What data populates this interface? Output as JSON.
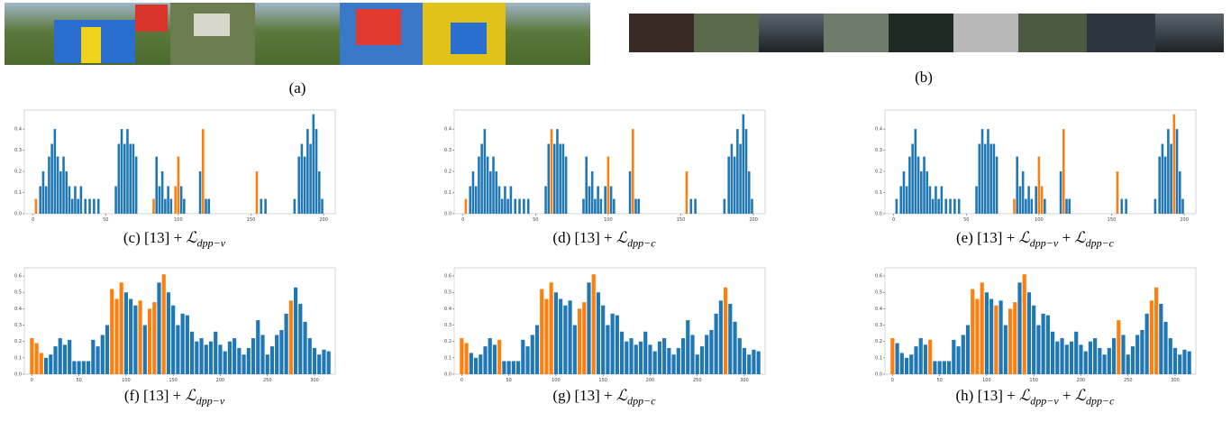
{
  "panels": {
    "image_captions": [
      "(a)",
      "(b)"
    ],
    "chart_data": [
      {
        "type": "bar",
        "caption": {
          "prefix": "(c) [13] +",
          "terms": [
            {
              "symbol": "ℒ",
              "sub": "dpp−v"
            }
          ]
        },
        "color": "#1f77b4",
        "highlight_color": "#ff7f0e",
        "x": [
          2,
          5,
          7,
          9,
          11,
          13,
          15,
          17,
          19,
          21,
          23,
          25,
          27,
          29,
          31,
          33,
          36,
          39,
          42,
          45,
          57,
          59,
          61,
          63,
          65,
          67,
          69,
          71,
          83,
          85,
          87,
          89,
          91,
          93,
          95,
          98,
          100,
          102,
          104,
          115,
          117,
          119,
          121,
          154,
          157,
          160,
          180,
          183,
          185,
          187,
          189,
          191,
          193,
          195,
          197,
          199
        ],
        "values": [
          0.07,
          0.13,
          0.2,
          0.13,
          0.27,
          0.33,
          0.4,
          0.27,
          0.2,
          0.27,
          0.2,
          0.13,
          0.07,
          0.13,
          0.07,
          0.13,
          0.07,
          0.07,
          0.07,
          0.07,
          0.13,
          0.33,
          0.4,
          0.33,
          0.4,
          0.33,
          0.33,
          0.27,
          0.07,
          0.27,
          0.13,
          0.2,
          0.07,
          0.13,
          0.07,
          0.13,
          0.27,
          0.13,
          0.07,
          0.2,
          0.4,
          0.07,
          0.07,
          0.2,
          0.07,
          0.07,
          0.07,
          0.27,
          0.33,
          0.27,
          0.4,
          0.33,
          0.47,
          0.4,
          0.2,
          0.07
        ],
        "highlight": [
          0,
          28,
          35,
          36,
          40,
          43
        ],
        "xlim": [
          -6,
          208
        ],
        "ylim": [
          0,
          0.49
        ],
        "xticks": [
          0,
          50,
          100,
          150,
          200
        ],
        "yticks": [
          {
            "value": 0,
            "label": "0.0"
          },
          {
            "value": 0.1,
            "label": "0.1"
          },
          {
            "value": 0.2,
            "label": "0.2"
          },
          {
            "value": 0.3,
            "label": "0.3"
          },
          {
            "value": 0.4,
            "label": "0.4"
          }
        ]
      },
      {
        "type": "bar",
        "caption": {
          "prefix": "(d) [13] +",
          "terms": [
            {
              "symbol": "ℒ",
              "sub": "dpp−c"
            }
          ]
        },
        "color": "#1f77b4",
        "highlight_color": "#ff7f0e",
        "x": [
          2,
          5,
          7,
          9,
          11,
          13,
          15,
          17,
          19,
          21,
          23,
          25,
          27,
          29,
          31,
          33,
          36,
          39,
          42,
          45,
          57,
          59,
          61,
          63,
          65,
          67,
          69,
          71,
          83,
          85,
          87,
          89,
          91,
          93,
          95,
          98,
          100,
          102,
          104,
          115,
          117,
          119,
          121,
          154,
          157,
          160,
          180,
          183,
          185,
          187,
          189,
          191,
          193,
          195,
          197,
          199
        ],
        "values": [
          0.07,
          0.13,
          0.2,
          0.13,
          0.27,
          0.33,
          0.4,
          0.27,
          0.2,
          0.27,
          0.2,
          0.13,
          0.07,
          0.13,
          0.07,
          0.13,
          0.07,
          0.07,
          0.07,
          0.07,
          0.13,
          0.33,
          0.4,
          0.33,
          0.4,
          0.33,
          0.33,
          0.27,
          0.07,
          0.27,
          0.13,
          0.2,
          0.07,
          0.13,
          0.07,
          0.13,
          0.27,
          0.13,
          0.07,
          0.2,
          0.4,
          0.07,
          0.07,
          0.2,
          0.07,
          0.07,
          0.07,
          0.27,
          0.33,
          0.27,
          0.4,
          0.33,
          0.47,
          0.4,
          0.2,
          0.07
        ],
        "highlight": [
          0,
          22,
          36,
          40,
          43
        ],
        "xlim": [
          -6,
          208
        ],
        "ylim": [
          0,
          0.49
        ],
        "xticks": [
          0,
          50,
          100,
          150,
          200
        ],
        "yticks": [
          {
            "value": 0,
            "label": "0.0"
          },
          {
            "value": 0.1,
            "label": "0.1"
          },
          {
            "value": 0.2,
            "label": "0.2"
          },
          {
            "value": 0.3,
            "label": "0.3"
          },
          {
            "value": 0.4,
            "label": "0.4"
          }
        ]
      },
      {
        "type": "bar",
        "caption": {
          "prefix": "(e) [13] +",
          "terms": [
            {
              "symbol": "ℒ",
              "sub": "dpp−v"
            },
            {
              "sep": "+",
              "symbol": "ℒ",
              "sub": "dpp−c"
            }
          ]
        },
        "color": "#1f77b4",
        "highlight_color": "#ff7f0e",
        "x": [
          2,
          5,
          7,
          9,
          11,
          13,
          15,
          17,
          19,
          21,
          23,
          25,
          27,
          29,
          31,
          33,
          36,
          39,
          42,
          45,
          57,
          59,
          61,
          63,
          65,
          67,
          69,
          71,
          83,
          85,
          87,
          89,
          91,
          93,
          95,
          98,
          100,
          102,
          104,
          115,
          117,
          119,
          121,
          154,
          157,
          160,
          180,
          183,
          185,
          187,
          189,
          191,
          193,
          195,
          197,
          199
        ],
        "values": [
          0.07,
          0.13,
          0.2,
          0.13,
          0.27,
          0.33,
          0.4,
          0.27,
          0.2,
          0.27,
          0.2,
          0.13,
          0.07,
          0.13,
          0.07,
          0.13,
          0.07,
          0.07,
          0.07,
          0.07,
          0.13,
          0.33,
          0.4,
          0.33,
          0.4,
          0.33,
          0.33,
          0.27,
          0.07,
          0.27,
          0.13,
          0.2,
          0.07,
          0.13,
          0.07,
          0.13,
          0.27,
          0.13,
          0.07,
          0.2,
          0.4,
          0.07,
          0.07,
          0.2,
          0.07,
          0.07,
          0.07,
          0.27,
          0.33,
          0.27,
          0.4,
          0.33,
          0.47,
          0.4,
          0.2,
          0.07
        ],
        "highlight": [
          28,
          36,
          37,
          40,
          43,
          52
        ],
        "xlim": [
          -6,
          208
        ],
        "ylim": [
          0,
          0.49
        ],
        "xticks": [
          0,
          50,
          100,
          150,
          200
        ],
        "yticks": [
          {
            "value": 0,
            "label": "0.0"
          },
          {
            "value": 0.1,
            "label": "0.1"
          },
          {
            "value": 0.2,
            "label": "0.2"
          },
          {
            "value": 0.3,
            "label": "0.3"
          },
          {
            "value": 0.4,
            "label": "0.4"
          }
        ]
      },
      {
        "type": "bar",
        "caption": {
          "prefix": "(f) [13] +",
          "terms": [
            {
              "symbol": "ℒ",
              "sub": "dpp−v"
            }
          ]
        },
        "color": "#1f77b4",
        "highlight_color": "#ff7f0e",
        "x": [
          0,
          5,
          10,
          15,
          20,
          25,
          30,
          35,
          40,
          45,
          50,
          55,
          60,
          65,
          70,
          75,
          80,
          85,
          90,
          95,
          100,
          105,
          110,
          115,
          120,
          125,
          130,
          135,
          140,
          145,
          150,
          155,
          160,
          165,
          170,
          175,
          180,
          185,
          190,
          195,
          200,
          205,
          210,
          215,
          220,
          225,
          230,
          235,
          240,
          245,
          250,
          255,
          260,
          265,
          270,
          275,
          280,
          285,
          290,
          295,
          300,
          305,
          310,
          315
        ],
        "values": [
          0.22,
          0.19,
          0.13,
          0.1,
          0.12,
          0.17,
          0.22,
          0.18,
          0.21,
          0.08,
          0.08,
          0.08,
          0.08,
          0.21,
          0.17,
          0.24,
          0.3,
          0.52,
          0.46,
          0.56,
          0.5,
          0.46,
          0.42,
          0.45,
          0.3,
          0.4,
          0.44,
          0.56,
          0.61,
          0.5,
          0.42,
          0.3,
          0.37,
          0.36,
          0.26,
          0.2,
          0.22,
          0.18,
          0.2,
          0.26,
          0.18,
          0.14,
          0.2,
          0.22,
          0.16,
          0.12,
          0.16,
          0.22,
          0.33,
          0.24,
          0.12,
          0.17,
          0.24,
          0.27,
          0.37,
          0.45,
          0.53,
          0.43,
          0.32,
          0.22,
          0.16,
          0.12,
          0.15,
          0.14
        ],
        "highlight": [
          0,
          1,
          2,
          17,
          18,
          19,
          23,
          25,
          26,
          28,
          55
        ],
        "xlim": [
          -8,
          322
        ],
        "ylim": [
          0,
          0.65
        ],
        "xticks": [
          0,
          50,
          100,
          150,
          200,
          250,
          300
        ],
        "yticks": [
          {
            "value": 0,
            "label": "0.0"
          },
          {
            "value": 0.1,
            "label": "0.1"
          },
          {
            "value": 0.2,
            "label": "0.2"
          },
          {
            "value": 0.3,
            "label": "0.3"
          },
          {
            "value": 0.4,
            "label": "0.4"
          },
          {
            "value": 0.5,
            "label": "0.5"
          },
          {
            "value": 0.6,
            "label": "0.6"
          }
        ]
      },
      {
        "type": "bar",
        "caption": {
          "prefix": "(g) [13] +",
          "terms": [
            {
              "symbol": "ℒ",
              "sub": "dpp−c"
            }
          ]
        },
        "color": "#1f77b4",
        "highlight_color": "#ff7f0e",
        "x": [
          0,
          5,
          10,
          15,
          20,
          25,
          30,
          35,
          40,
          45,
          50,
          55,
          60,
          65,
          70,
          75,
          80,
          85,
          90,
          95,
          100,
          105,
          110,
          115,
          120,
          125,
          130,
          135,
          140,
          145,
          150,
          155,
          160,
          165,
          170,
          175,
          180,
          185,
          190,
          195,
          200,
          205,
          210,
          215,
          220,
          225,
          230,
          235,
          240,
          245,
          250,
          255,
          260,
          265,
          270,
          275,
          280,
          285,
          290,
          295,
          300,
          305,
          310,
          315
        ],
        "values": [
          0.22,
          0.19,
          0.13,
          0.1,
          0.12,
          0.17,
          0.22,
          0.18,
          0.21,
          0.08,
          0.08,
          0.08,
          0.08,
          0.21,
          0.17,
          0.24,
          0.3,
          0.52,
          0.46,
          0.56,
          0.5,
          0.46,
          0.42,
          0.45,
          0.3,
          0.4,
          0.44,
          0.56,
          0.61,
          0.5,
          0.42,
          0.3,
          0.37,
          0.36,
          0.26,
          0.2,
          0.22,
          0.18,
          0.2,
          0.26,
          0.18,
          0.14,
          0.2,
          0.22,
          0.16,
          0.12,
          0.16,
          0.22,
          0.33,
          0.24,
          0.12,
          0.17,
          0.24,
          0.27,
          0.37,
          0.45,
          0.53,
          0.43,
          0.32,
          0.22,
          0.16,
          0.12,
          0.15,
          0.14
        ],
        "highlight": [
          0,
          1,
          8,
          17,
          18,
          19,
          25,
          26,
          28,
          56
        ],
        "xlim": [
          -8,
          322
        ],
        "ylim": [
          0,
          0.65
        ],
        "xticks": [
          0,
          50,
          100,
          150,
          200,
          250,
          300
        ],
        "yticks": [
          {
            "value": 0,
            "label": "0.0"
          },
          {
            "value": 0.1,
            "label": "0.1"
          },
          {
            "value": 0.2,
            "label": "0.2"
          },
          {
            "value": 0.3,
            "label": "0.3"
          },
          {
            "value": 0.4,
            "label": "0.4"
          },
          {
            "value": 0.5,
            "label": "0.5"
          },
          {
            "value": 0.6,
            "label": "0.6"
          }
        ]
      },
      {
        "type": "bar",
        "caption": {
          "prefix": "(h) [13] +",
          "terms": [
            {
              "symbol": "ℒ",
              "sub": "dpp−v"
            },
            {
              "sep": "+",
              "symbol": "ℒ",
              "sub": "dpp−c"
            }
          ]
        },
        "color": "#1f77b4",
        "highlight_color": "#ff7f0e",
        "x": [
          0,
          5,
          10,
          15,
          20,
          25,
          30,
          35,
          40,
          45,
          50,
          55,
          60,
          65,
          70,
          75,
          80,
          85,
          90,
          95,
          100,
          105,
          110,
          115,
          120,
          125,
          130,
          135,
          140,
          145,
          150,
          155,
          160,
          165,
          170,
          175,
          180,
          185,
          190,
          195,
          200,
          205,
          210,
          215,
          220,
          225,
          230,
          235,
          240,
          245,
          250,
          255,
          260,
          265,
          270,
          275,
          280,
          285,
          290,
          295,
          300,
          305,
          310,
          315
        ],
        "values": [
          0.22,
          0.19,
          0.13,
          0.1,
          0.12,
          0.17,
          0.22,
          0.18,
          0.21,
          0.08,
          0.08,
          0.08,
          0.08,
          0.21,
          0.17,
          0.24,
          0.3,
          0.52,
          0.46,
          0.56,
          0.5,
          0.46,
          0.42,
          0.45,
          0.3,
          0.4,
          0.44,
          0.56,
          0.61,
          0.5,
          0.42,
          0.3,
          0.37,
          0.36,
          0.26,
          0.2,
          0.22,
          0.18,
          0.2,
          0.26,
          0.18,
          0.14,
          0.2,
          0.22,
          0.16,
          0.12,
          0.16,
          0.22,
          0.33,
          0.24,
          0.12,
          0.17,
          0.24,
          0.27,
          0.37,
          0.45,
          0.53,
          0.43,
          0.32,
          0.22,
          0.16,
          0.12,
          0.15,
          0.14
        ],
        "highlight": [
          0,
          8,
          17,
          18,
          19,
          22,
          25,
          26,
          28,
          48,
          55,
          56
        ],
        "xlim": [
          -8,
          322
        ],
        "ylim": [
          0,
          0.65
        ],
        "xticks": [
          0,
          50,
          100,
          150,
          200,
          250,
          300
        ],
        "yticks": [
          {
            "value": 0,
            "label": "0.0"
          },
          {
            "value": 0.1,
            "label": "0.1"
          },
          {
            "value": 0.2,
            "label": "0.2"
          },
          {
            "value": 0.3,
            "label": "0.3"
          },
          {
            "value": 0.4,
            "label": "0.4"
          },
          {
            "value": 0.5,
            "label": "0.5"
          },
          {
            "value": 0.6,
            "label": "0.6"
          }
        ]
      }
    ]
  }
}
